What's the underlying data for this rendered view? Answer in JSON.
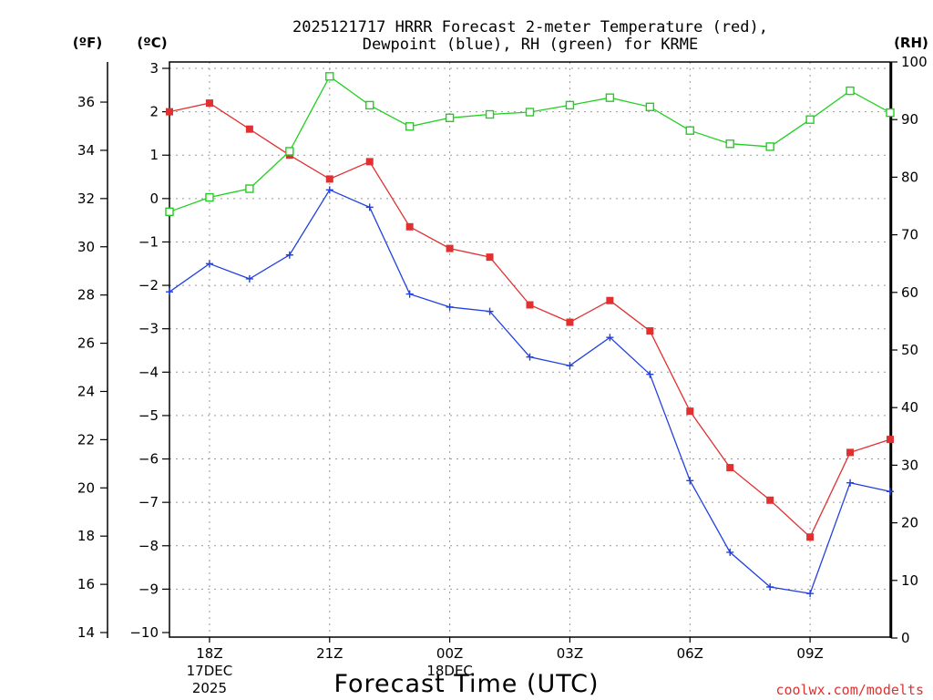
{
  "chart_data": {
    "type": "line",
    "title_lines": [
      "2025121717 HRRR Forecast 2-meter Temperature (red),",
      "Dewpoint (blue), RH (green) for KRME"
    ],
    "xlabel": "Forecast Time (UTC)",
    "credit": "coolwx.com/modelts",
    "unit_labels": {
      "fahrenheit": "(ºF)",
      "celsius": "(ºC)",
      "rh": "(RH)"
    },
    "x_hours": [
      17,
      18,
      19,
      20,
      21,
      22,
      23,
      24,
      25,
      26,
      27,
      28,
      29,
      30,
      31,
      32,
      33,
      34,
      35
    ],
    "x_ticks": [
      {
        "hour": 18,
        "label": "18Z",
        "sub1": "17DEC",
        "sub2": "2025"
      },
      {
        "hour": 21,
        "label": "21Z"
      },
      {
        "hour": 24,
        "label": "00Z",
        "sub1": "18DEC"
      },
      {
        "hour": 27,
        "label": "03Z"
      },
      {
        "hour": 30,
        "label": "06Z"
      },
      {
        "hour": 33,
        "label": "09Z"
      }
    ],
    "y_celsius": {
      "min": -10,
      "max": 3,
      "ticks": [
        3,
        2,
        1,
        0,
        -1,
        -2,
        -3,
        -4,
        -5,
        -6,
        -7,
        -8,
        -9,
        -10
      ],
      "tick_labels": [
        "3",
        "2",
        "1",
        "0",
        "−1",
        "−2",
        "−3",
        "−4",
        "−5",
        "−6",
        "−7",
        "−8",
        "−9",
        "−10"
      ]
    },
    "y_fahrenheit": {
      "ticks": [
        36,
        34,
        32,
        30,
        28,
        26,
        24,
        22,
        20,
        18,
        16,
        14
      ],
      "tick_labels": [
        "36",
        "34",
        "32",
        "30",
        "28",
        "26",
        "24",
        "22",
        "20",
        "18",
        "16",
        "14"
      ]
    },
    "y_rh": {
      "min": 0,
      "max": 100,
      "ticks": [
        100,
        90,
        80,
        70,
        60,
        50,
        40,
        30,
        20,
        10,
        0
      ],
      "tick_labels": [
        "100",
        "90",
        "80",
        "70",
        "60",
        "50",
        "40",
        "30",
        "20",
        "10",
        "0"
      ]
    },
    "series": [
      {
        "name": "Temperature",
        "unit": "C",
        "color": "#e03030",
        "marker": "filled-square",
        "values": [
          2.0,
          2.2,
          1.6,
          1.0,
          0.45,
          0.85,
          -0.65,
          -1.15,
          -1.35,
          -2.45,
          -2.85,
          -2.35,
          -3.05,
          -4.9,
          -6.2,
          -6.95,
          -7.8,
          -5.85,
          -5.55
        ]
      },
      {
        "name": "Dewpoint",
        "unit": "C",
        "color": "#2040e0",
        "marker": "plus",
        "values": [
          -2.15,
          -1.5,
          -1.85,
          -1.3,
          0.2,
          -0.2,
          -2.2,
          -2.5,
          -2.6,
          -3.65,
          -3.85,
          -3.2,
          -4.05,
          -6.5,
          -8.15,
          -8.95,
          -9.1,
          -6.55,
          -6.75
        ]
      },
      {
        "name": "RH",
        "unit": "%",
        "color": "#20d020",
        "marker": "open-square",
        "values": [
          74,
          76.5,
          78,
          84.5,
          97.5,
          92.5,
          88.8,
          90.3,
          90.9,
          91.3,
          92.5,
          93.8,
          92.2,
          88.1,
          85.8,
          85.3,
          90,
          95,
          91.2
        ]
      }
    ]
  }
}
